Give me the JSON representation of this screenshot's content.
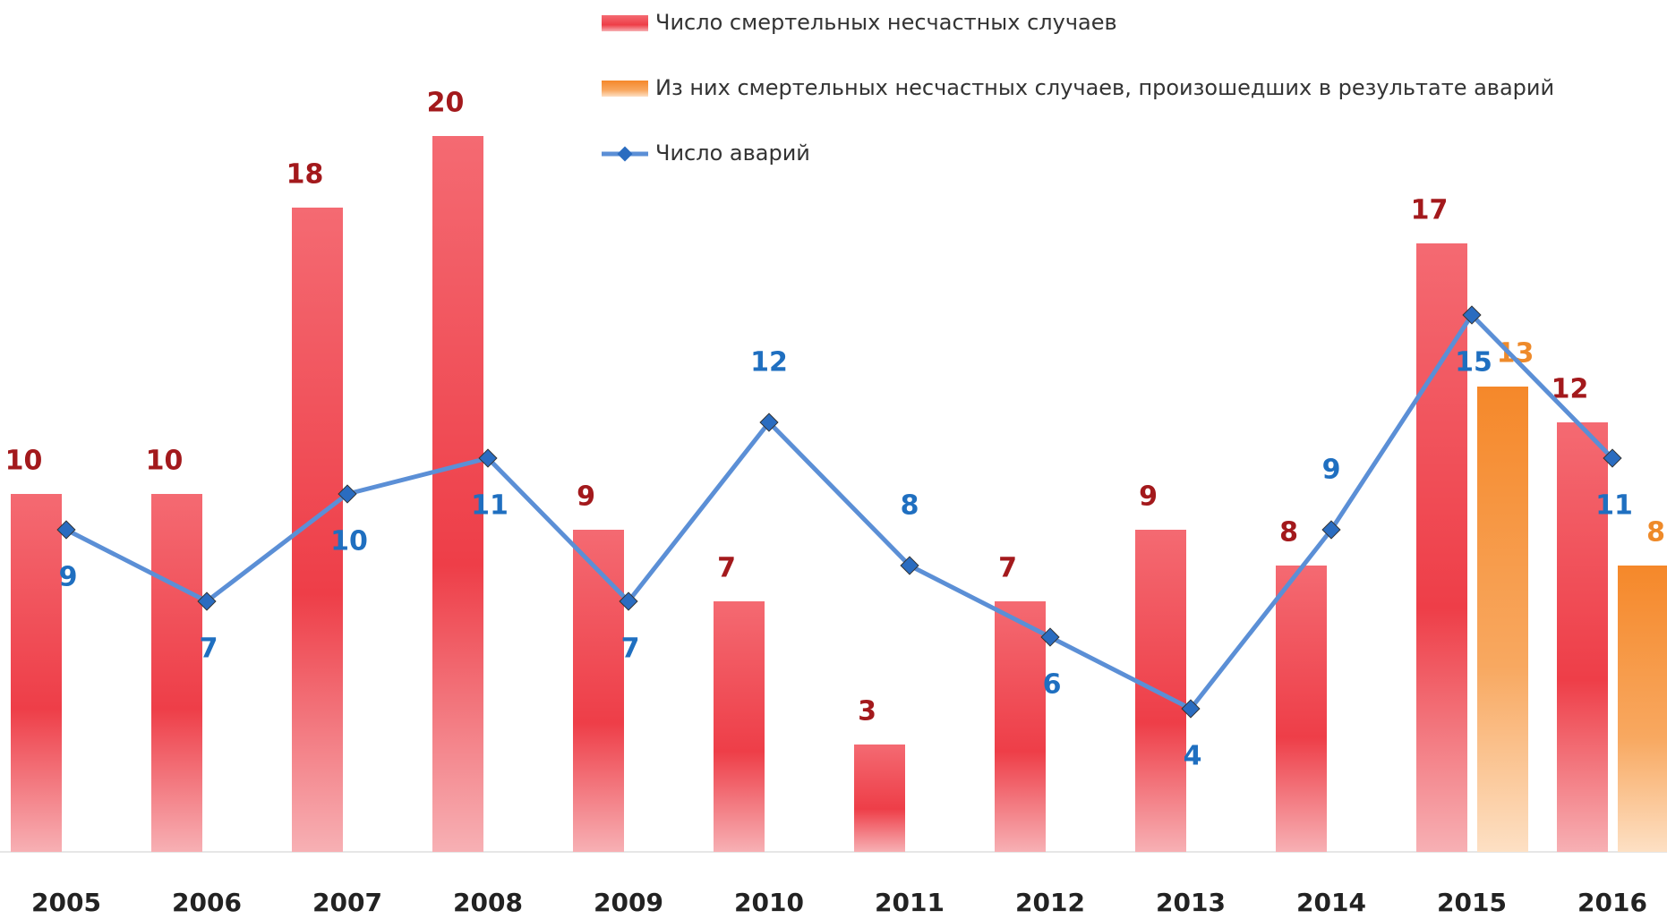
{
  "chart_data": {
    "type": "bar",
    "categories": [
      "2005",
      "2006",
      "2007",
      "2008",
      "2009",
      "2010",
      "2011",
      "2012",
      "2013",
      "2014",
      "2015",
      "2016"
    ],
    "series": [
      {
        "name": "Число смертельных несчастных случаев",
        "color": "#ee4650",
        "values": [
          10,
          10,
          18,
          20,
          9,
          7,
          3,
          7,
          9,
          8,
          17,
          12
        ]
      },
      {
        "name": "Из них смертельных несчастных случаев, произошедших в результате аварий",
        "color": "#f5923a",
        "values": [
          null,
          null,
          null,
          null,
          null,
          null,
          null,
          null,
          null,
          null,
          13,
          8
        ]
      },
      {
        "name": "Число аварий",
        "color": "#5b8fd6",
        "type": "line",
        "values": [
          9,
          7,
          10,
          11,
          7,
          12,
          8,
          6,
          4,
          9,
          15,
          11
        ]
      }
    ],
    "ylim": [
      0,
      20
    ]
  }
}
